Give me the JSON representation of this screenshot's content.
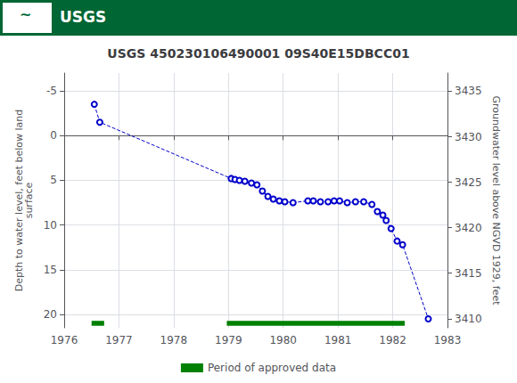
{
  "chart_data": {
    "type": "line",
    "title": "USGS 450230106490001 09S40E15DBCC01",
    "annotations": [
      {
        "text": "~"
      },
      {
        "text": "USGS"
      }
    ],
    "ylabel": "Depth to water level, feet below land\nsurface",
    "y2label": "Groundwater level above NGVD 1929, feet",
    "x": [
      1976.55,
      1976.65,
      1979.05,
      1979.12,
      1979.2,
      1979.3,
      1979.42,
      1979.52,
      1979.62,
      1979.72,
      1979.82,
      1979.93,
      1980.03,
      1980.18,
      1980.45,
      1980.55,
      1980.68,
      1980.82,
      1980.93,
      1981.03,
      1981.17,
      1981.32,
      1981.47,
      1981.62,
      1981.72,
      1981.82,
      1981.88,
      1981.97,
      1982.08,
      1982.18,
      1982.65
    ],
    "series": [
      {
        "type": "line",
        "color": "#0000CC",
        "marker": "circle",
        "line_style": "dashed",
        "values": [
          -3.5,
          -1.5,
          4.8,
          4.9,
          5.0,
          5.1,
          5.3,
          5.5,
          6.2,
          6.8,
          7.1,
          7.3,
          7.4,
          7.5,
          7.3,
          7.3,
          7.4,
          7.4,
          7.3,
          7.3,
          7.5,
          7.4,
          7.4,
          7.7,
          8.5,
          8.9,
          9.5,
          10.4,
          11.8,
          12.2,
          20.5
        ]
      },
      {
        "type": "band",
        "name": "Period of approved data",
        "color": "#008000",
        "ranges": [
          [
            1976.5,
            1976.73
          ],
          [
            1978.97,
            1982.22
          ]
        ],
        "y": 21.0,
        "thickness": 0.55
      }
    ],
    "xlim": [
      1976,
      1983
    ],
    "xticks": [
      1976,
      1977,
      1978,
      1979,
      1980,
      1981,
      1982,
      1983
    ],
    "ylim": [
      21.5,
      -7
    ],
    "yticks": [
      -5,
      0,
      5,
      10,
      15,
      20
    ],
    "y2lim": [
      3409,
      3437
    ],
    "y2ticks": [
      3410,
      3415,
      3420,
      3425,
      3430,
      3435
    ],
    "grid": true,
    "legend": "bottom"
  }
}
